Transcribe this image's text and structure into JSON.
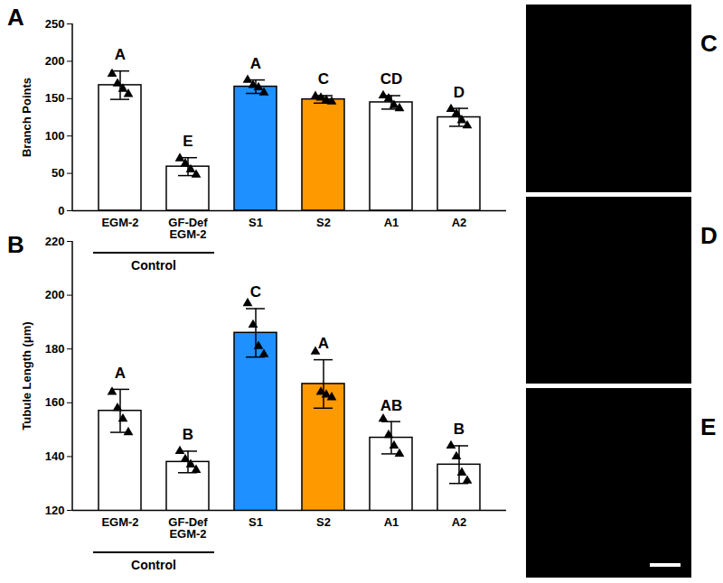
{
  "chart_data": [
    {
      "type": "bar",
      "panel": "A",
      "ylabel": "Branch Points",
      "categories": [
        "EGM-2",
        "GF-Def\nEGM-2",
        "S1",
        "S2",
        "A1",
        "A2"
      ],
      "values": [
        168,
        59,
        166,
        149,
        145,
        125
      ],
      "error": [
        19,
        12,
        9,
        5,
        9,
        12
      ],
      "points": [
        [
          183,
          170,
          163,
          156
        ],
        [
          70,
          63,
          55,
          48
        ],
        [
          175,
          168,
          165,
          158
        ],
        [
          153,
          151,
          148,
          146
        ],
        [
          154,
          150,
          141,
          137
        ],
        [
          136,
          130,
          121,
          114
        ]
      ],
      "significance_labels": [
        "A",
        "E",
        "A",
        "C",
        "CD",
        "D"
      ],
      "colors": [
        "#ffffff",
        "#ffffff",
        "#1e90ff",
        "#ff9900",
        "#ffffff",
        "#ffffff"
      ],
      "groups": [
        {
          "label": "Control",
          "categories": [
            "EGM-2",
            "GF-Def\nEGM-2"
          ]
        }
      ],
      "ylim": [
        0,
        250
      ],
      "yticks": [
        0,
        50,
        100,
        150,
        200,
        250
      ]
    },
    {
      "type": "bar",
      "panel": "B",
      "ylabel": "Tubule Length (μm)",
      "categories": [
        "EGM-2",
        "GF-Def\nEGM-2",
        "S1",
        "S2",
        "A1",
        "A2"
      ],
      "values": [
        157,
        138,
        186,
        167,
        147,
        137
      ],
      "error": [
        8,
        4,
        9,
        9,
        6,
        7
      ],
      "points": [
        [
          164,
          158,
          154,
          149
        ],
        [
          142,
          139,
          137,
          135
        ],
        [
          197,
          189,
          181,
          178
        ],
        [
          179,
          164,
          163,
          162
        ],
        [
          154,
          148,
          144,
          141
        ],
        [
          144,
          140,
          134,
          131
        ]
      ],
      "significance_labels": [
        "A",
        "B",
        "C",
        "A",
        "AB",
        "B"
      ],
      "colors": [
        "#ffffff",
        "#ffffff",
        "#1e90ff",
        "#ff9900",
        "#ffffff",
        "#ffffff"
      ],
      "groups": [
        {
          "label": "Control",
          "categories": [
            "EGM-2",
            "GF-Def\nEGM-2"
          ]
        }
      ],
      "ylim": [
        120,
        220
      ],
      "yticks": [
        120,
        140,
        160,
        180,
        200,
        220
      ]
    }
  ],
  "images": [
    {
      "label": "C",
      "scale_bar": false
    },
    {
      "label": "D",
      "scale_bar": false
    },
    {
      "label": "E",
      "scale_bar": true
    }
  ]
}
